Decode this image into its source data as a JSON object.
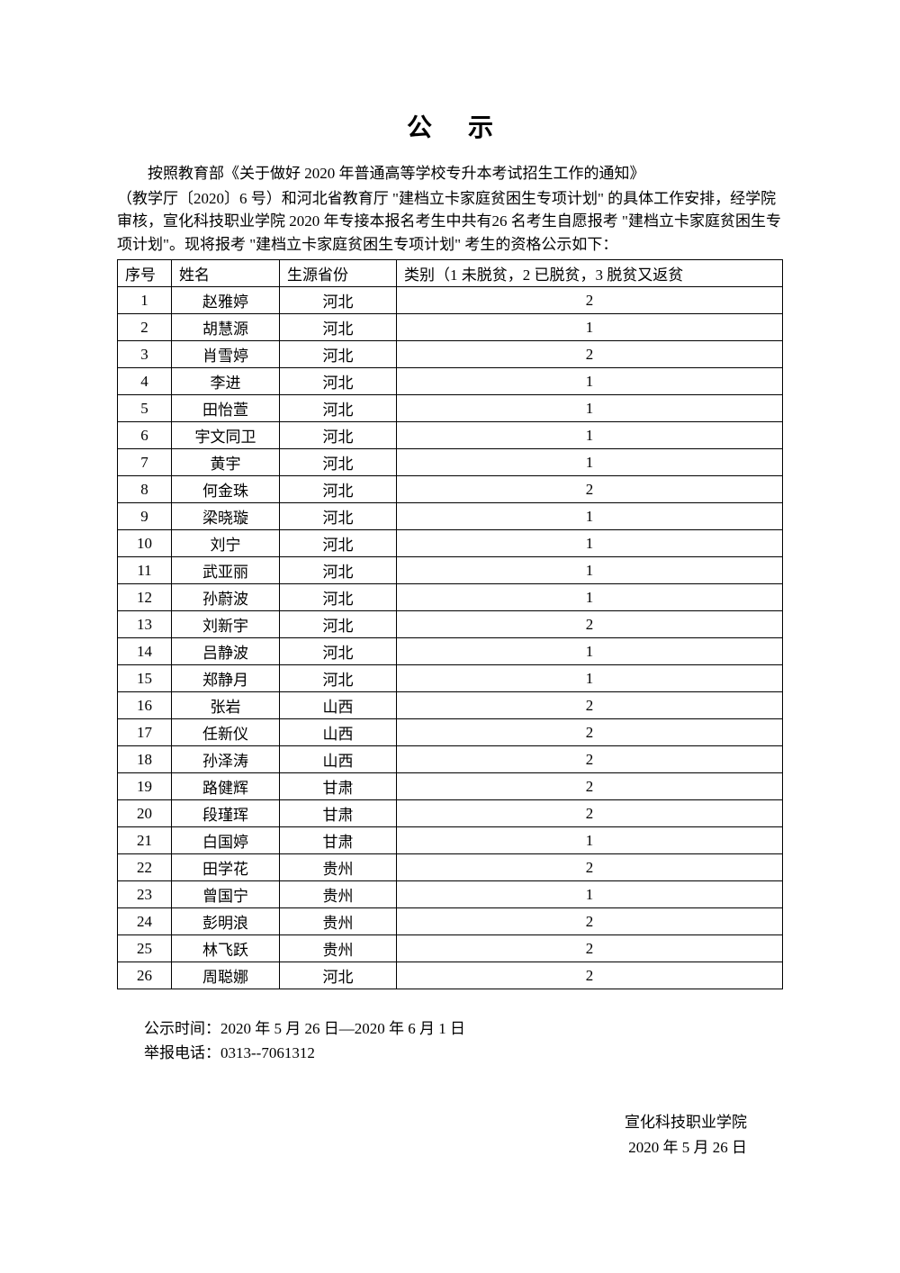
{
  "title": "公示",
  "intro_line1": "按照教育部《关于做好 2020 年普通高等学校专升本考试招生工作的通知》",
  "intro_line2": "（教学厅〔2020〕6 号）和河北省教育厅 \"建档立卡家庭贫困生专项计划\" 的具体工作安排，经学院审核，宣化科技职业学院 2020 年专接本报名考生中共有26 名考生自愿报考 \"建档立卡家庭贫困生专项计划\"。现将报考 \"建档立卡家庭贫困生专项计划\" 考生的资格公示如下：",
  "table": {
    "columns": [
      "序号",
      "姓名",
      "生源省份",
      "类别（1 未脱贫，2 已脱贫，3 脱贫又返贫"
    ],
    "rows": [
      [
        "1",
        "赵雅婷",
        "河北",
        "2"
      ],
      [
        "2",
        "胡慧源",
        "河北",
        "1"
      ],
      [
        "3",
        "肖雪婷",
        "河北",
        "2"
      ],
      [
        "4",
        "李进",
        "河北",
        "1"
      ],
      [
        "5",
        "田怡萱",
        "河北",
        "1"
      ],
      [
        "6",
        "宇文同卫",
        "河北",
        "1"
      ],
      [
        "7",
        "黄宇",
        "河北",
        "1"
      ],
      [
        "8",
        "何金珠",
        "河北",
        "2"
      ],
      [
        "9",
        "梁晓璇",
        "河北",
        "1"
      ],
      [
        "10",
        "刘宁",
        "河北",
        "1"
      ],
      [
        "11",
        "武亚丽",
        "河北",
        "1"
      ],
      [
        "12",
        "孙蔚波",
        "河北",
        "1"
      ],
      [
        "13",
        "刘新宇",
        "河北",
        "2"
      ],
      [
        "14",
        "吕静波",
        "河北",
        "1"
      ],
      [
        "15",
        "郑静月",
        "河北",
        "1"
      ],
      [
        "16",
        "张岩",
        "山西",
        "2"
      ],
      [
        "17",
        "任新仪",
        "山西",
        "2"
      ],
      [
        "18",
        "孙泽涛",
        "山西",
        "2"
      ],
      [
        "19",
        "路健辉",
        "甘肃",
        "2"
      ],
      [
        "20",
        "段瑾珲",
        "甘肃",
        "2"
      ],
      [
        "21",
        "白国婷",
        "甘肃",
        "1"
      ],
      [
        "22",
        "田学花",
        "贵州",
        "2"
      ],
      [
        "23",
        "曾国宁",
        "贵州",
        "1"
      ],
      [
        "24",
        "彭明浪",
        "贵州",
        "2"
      ],
      [
        "25",
        "林飞跃",
        "贵州",
        "2"
      ],
      [
        "26",
        "周聪娜",
        "河北",
        "2"
      ]
    ]
  },
  "footer": {
    "period": "公示时间：2020 年 5 月 26 日—2020 年 6 月 1 日",
    "phone": "举报电话：0313--7061312"
  },
  "signature": {
    "org": "宣化科技职业学院",
    "date": "2020 年 5 月 26 日"
  },
  "colors": {
    "background": "#ffffff",
    "text": "#000000",
    "border": "#000000"
  }
}
